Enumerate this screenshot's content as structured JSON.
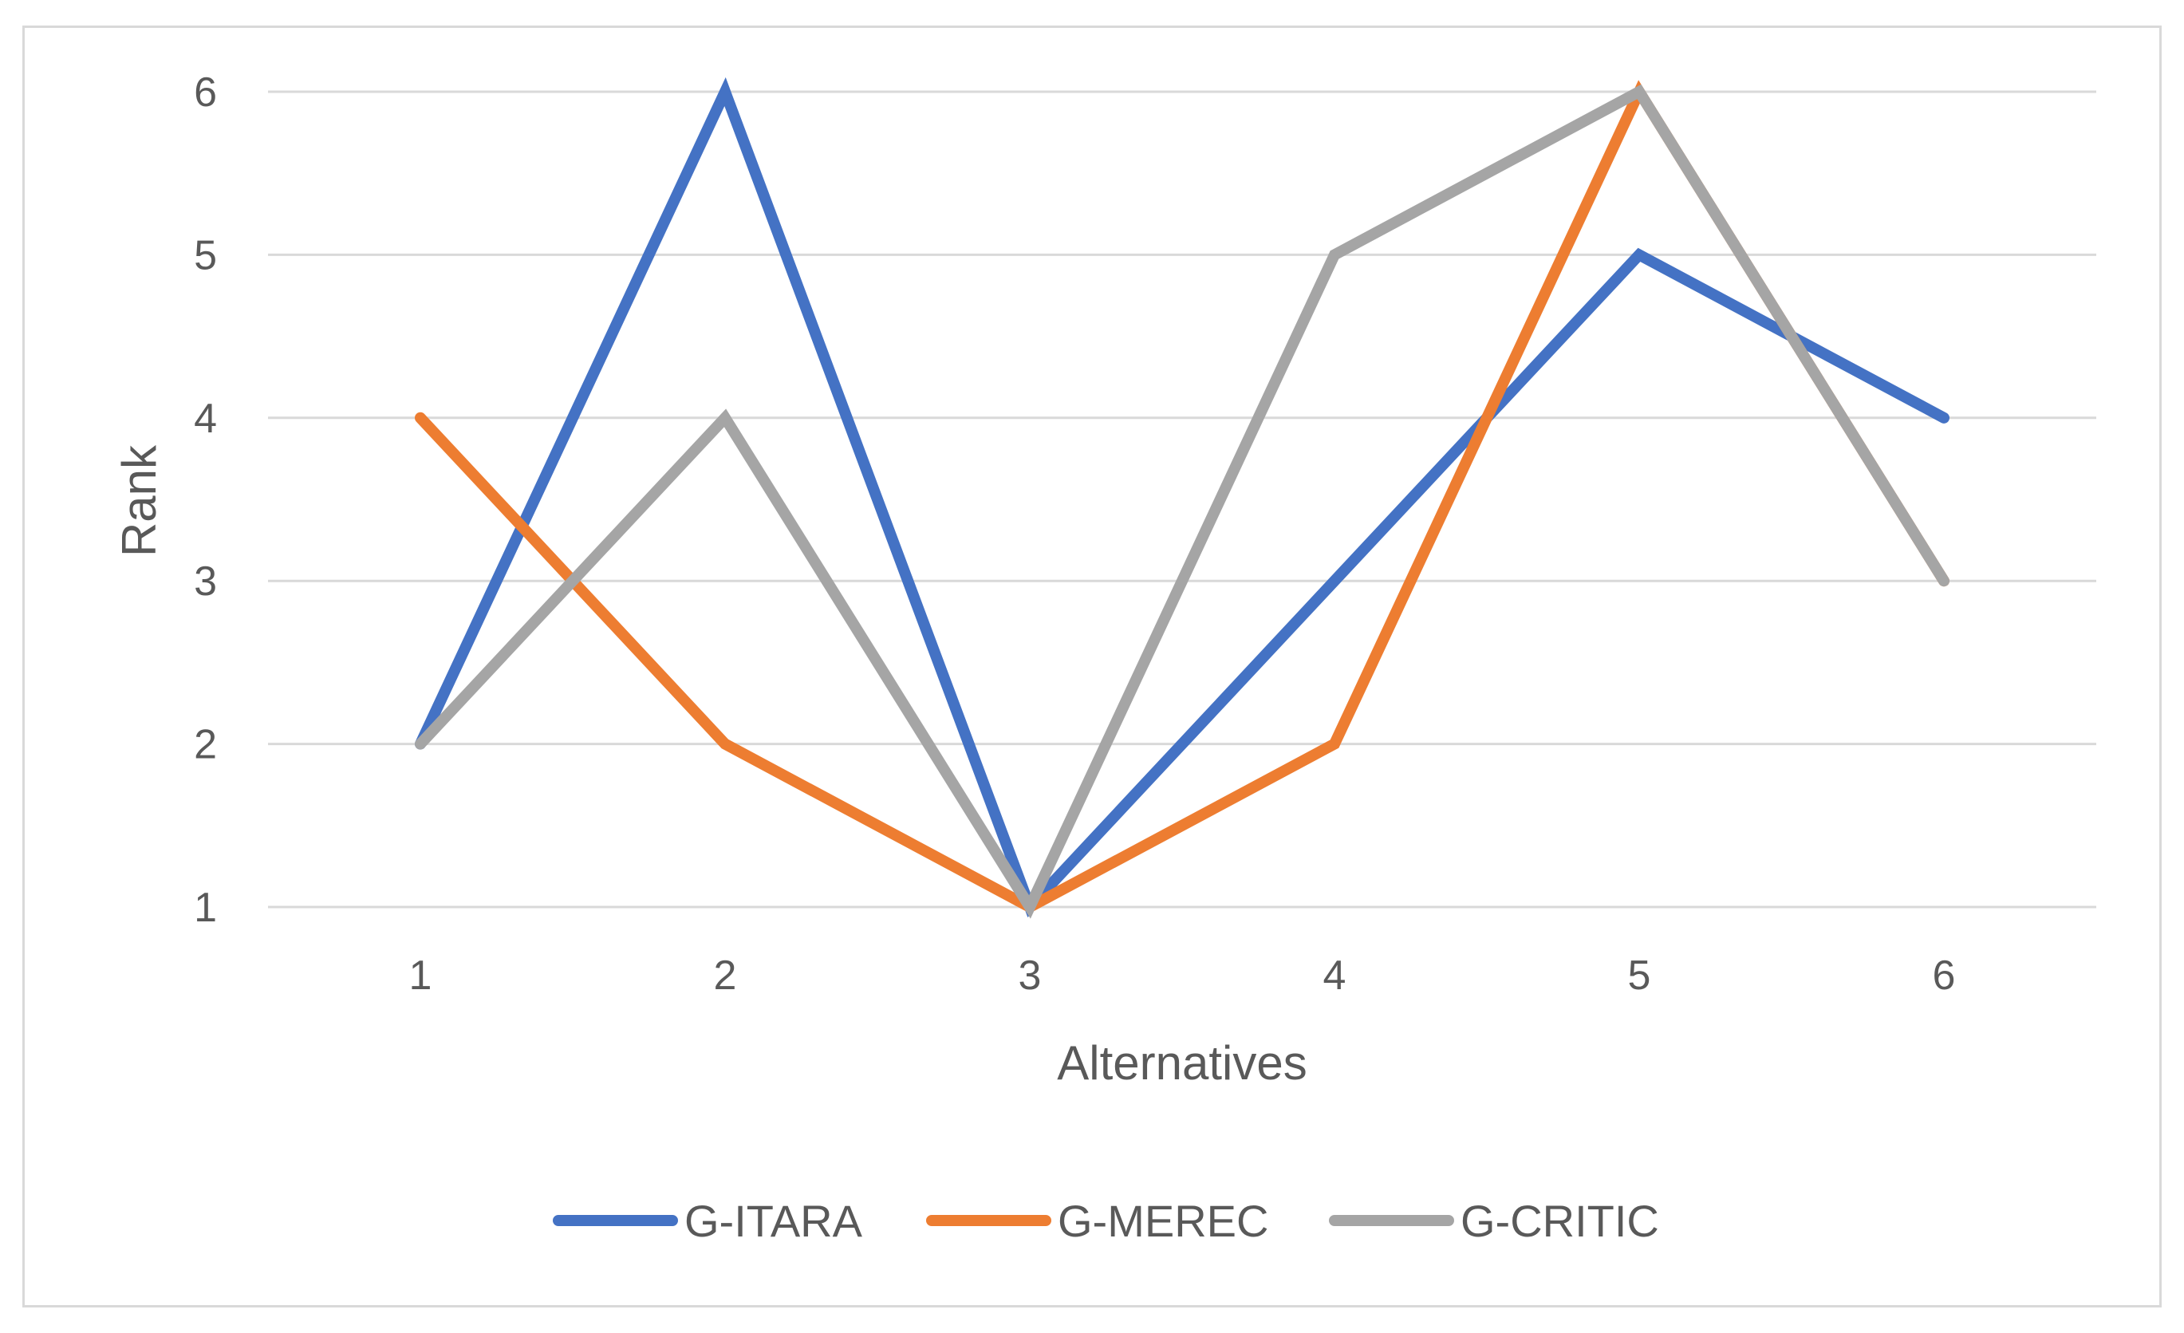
{
  "chart_data": {
    "type": "line",
    "title": "",
    "xlabel": "Alternatives",
    "ylabel": "Rank",
    "categories": [
      "1",
      "2",
      "3",
      "4",
      "5",
      "6"
    ],
    "ylim": [
      1,
      6
    ],
    "yticks": [
      "1",
      "2",
      "3",
      "4",
      "5",
      "6"
    ],
    "grid": true,
    "legend_position": "bottom",
    "series": [
      {
        "name": "G-ITARA",
        "values": [
          2,
          6,
          1,
          3,
          5,
          4
        ],
        "color": "#4472c4"
      },
      {
        "name": "G-MEREC",
        "values": [
          4,
          2,
          1,
          2,
          6,
          3
        ],
        "color": "#ed7d31"
      },
      {
        "name": "G-CRITIC",
        "values": [
          2,
          4,
          1,
          5,
          6,
          3
        ],
        "color": "#a5a5a5"
      }
    ]
  }
}
